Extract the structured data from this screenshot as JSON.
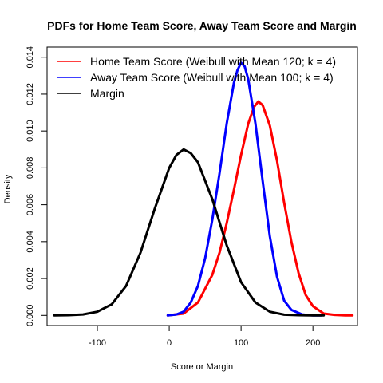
{
  "chart_data": {
    "type": "line",
    "title": "PDFs for Home Team Score, Away Team Score and Margin",
    "xlabel": "Score or Margin",
    "ylabel": "Density",
    "xlim": [
      -170,
      262
    ],
    "ylim": [
      -0.00055,
      0.01455
    ],
    "x_ticks": [
      -100,
      0,
      100,
      200
    ],
    "y_ticks": [
      0.0,
      0.002,
      0.004,
      0.006,
      0.008,
      0.01,
      0.012,
      0.014
    ],
    "x_tick_labels": [
      "-100",
      "0",
      "100",
      "200"
    ],
    "y_tick_labels": [
      "0.000",
      "0.002",
      "0.004",
      "0.006",
      "0.008",
      "0.010",
      "0.012",
      "0.014"
    ],
    "legend_position": "top-left",
    "grid": false,
    "series": [
      {
        "name": "Home Team Score (Weibull with Mean 120; k = 4)",
        "color": "#ff0000",
        "x": [
          -2,
          20,
          40,
          60,
          70,
          80,
          90,
          100,
          110,
          118,
          124,
          130,
          140,
          150,
          160,
          170,
          180,
          190,
          200,
          215,
          230,
          245,
          255
        ],
        "y": [
          0,
          0.0001,
          0.0007,
          0.0022,
          0.0034,
          0.005,
          0.0068,
          0.0087,
          0.0104,
          0.0113,
          0.0116,
          0.0114,
          0.0103,
          0.0084,
          0.0061,
          0.004,
          0.0023,
          0.0011,
          0.0005,
          0.0001,
          3e-05,
          0,
          0
        ]
      },
      {
        "name": "Away Team Score (Weibull with Mean 100; k = 4)",
        "color": "#0000ff",
        "x": [
          -2,
          10,
          20,
          30,
          40,
          50,
          60,
          70,
          80,
          90,
          95,
          100,
          105,
          110,
          120,
          130,
          140,
          150,
          160,
          170,
          185,
          200,
          212
        ],
        "y": [
          0,
          5e-05,
          0.0002,
          0.0007,
          0.0016,
          0.0031,
          0.0052,
          0.0077,
          0.0104,
          0.0126,
          0.0133,
          0.0137,
          0.0135,
          0.0128,
          0.0104,
          0.0073,
          0.0043,
          0.0021,
          0.0008,
          0.0003,
          5e-05,
          0,
          0
        ]
      },
      {
        "name": "Margin",
        "color": "#000000",
        "x": [
          -160,
          -140,
          -120,
          -100,
          -80,
          -60,
          -40,
          -20,
          0,
          10,
          20,
          30,
          40,
          60,
          80,
          100,
          120,
          140,
          160,
          180,
          200,
          215
        ],
        "y": [
          0,
          1e-05,
          5e-05,
          0.0002,
          0.0006,
          0.0016,
          0.0034,
          0.0058,
          0.008,
          0.0087,
          0.009,
          0.0088,
          0.0083,
          0.0063,
          0.0038,
          0.0018,
          0.0007,
          0.0002,
          4e-05,
          1e-05,
          0,
          0
        ]
      }
    ]
  }
}
